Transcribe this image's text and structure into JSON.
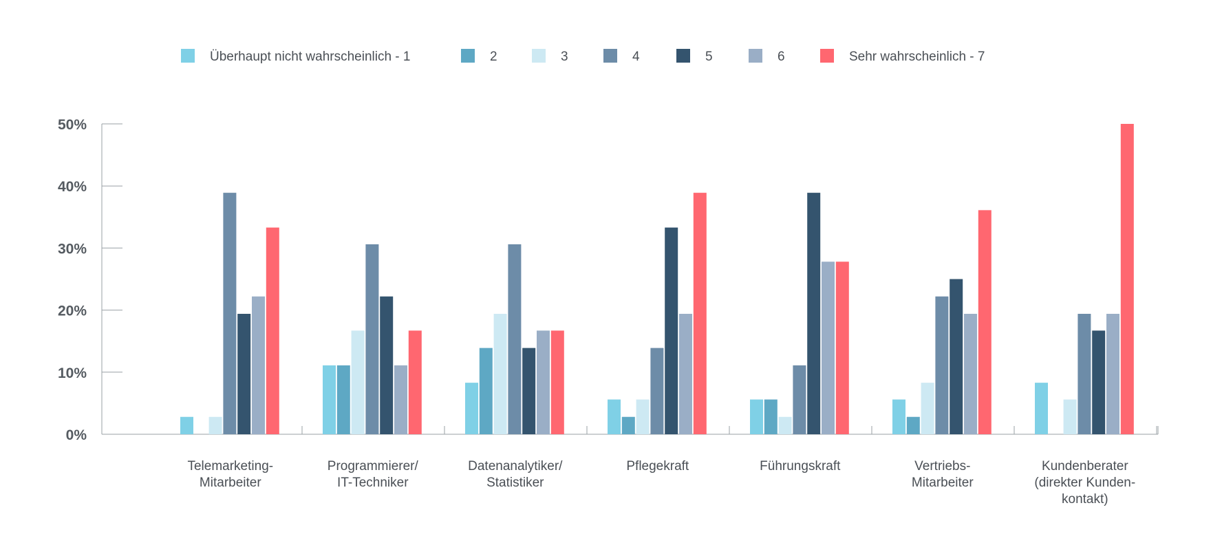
{
  "chart_data": {
    "type": "bar",
    "title": "",
    "xlabel": "",
    "ylabel": "",
    "ylim": [
      0,
      50
    ],
    "y_ticks": [
      0,
      10,
      20,
      30,
      40,
      50
    ],
    "y_tick_labels": [
      "0%",
      "10%",
      "20%",
      "30%",
      "40%",
      "50%"
    ],
    "grid": false,
    "legend_position": "top",
    "categories": [
      [
        "Telemarketing-",
        "Mitarbeiter"
      ],
      [
        "Programmierer/",
        "IT-Techniker"
      ],
      [
        "Datenanalytiker/",
        "Statistiker"
      ],
      [
        "Pflegekraft"
      ],
      [
        "Führungskraft"
      ],
      [
        "Vertriebs-",
        "Mitarbeiter"
      ],
      [
        "Kundenberater",
        "(direkter Kunden-",
        "kontakt)"
      ]
    ],
    "series": [
      {
        "name": "Überhaupt nicht wahrscheinlich - 1",
        "color": "#7fd0e6",
        "values": [
          2.8,
          11.1,
          8.3,
          5.6,
          5.6,
          5.6,
          8.3
        ]
      },
      {
        "name": "2",
        "color": "#5ea8c4",
        "values": [
          0,
          11.1,
          13.9,
          2.8,
          5.6,
          2.8,
          0
        ]
      },
      {
        "name": "3",
        "color": "#cde9f3",
        "values": [
          2.8,
          16.7,
          19.4,
          5.6,
          2.8,
          8.3,
          5.6
        ]
      },
      {
        "name": "4",
        "color": "#6d8ca8",
        "values": [
          38.9,
          30.6,
          30.6,
          13.9,
          11.1,
          22.2,
          19.4
        ]
      },
      {
        "name": "5",
        "color": "#34546e",
        "values": [
          19.4,
          22.2,
          13.9,
          33.3,
          38.9,
          25.0,
          16.7
        ]
      },
      {
        "name": "6",
        "color": "#9aaec6",
        "values": [
          22.2,
          11.1,
          16.7,
          19.4,
          27.8,
          19.4,
          19.4
        ]
      },
      {
        "name": "Sehr wahrscheinlich - 7",
        "color": "#ff6770",
        "values": [
          33.3,
          16.7,
          16.7,
          38.9,
          27.8,
          36.1,
          50.0
        ]
      }
    ]
  }
}
